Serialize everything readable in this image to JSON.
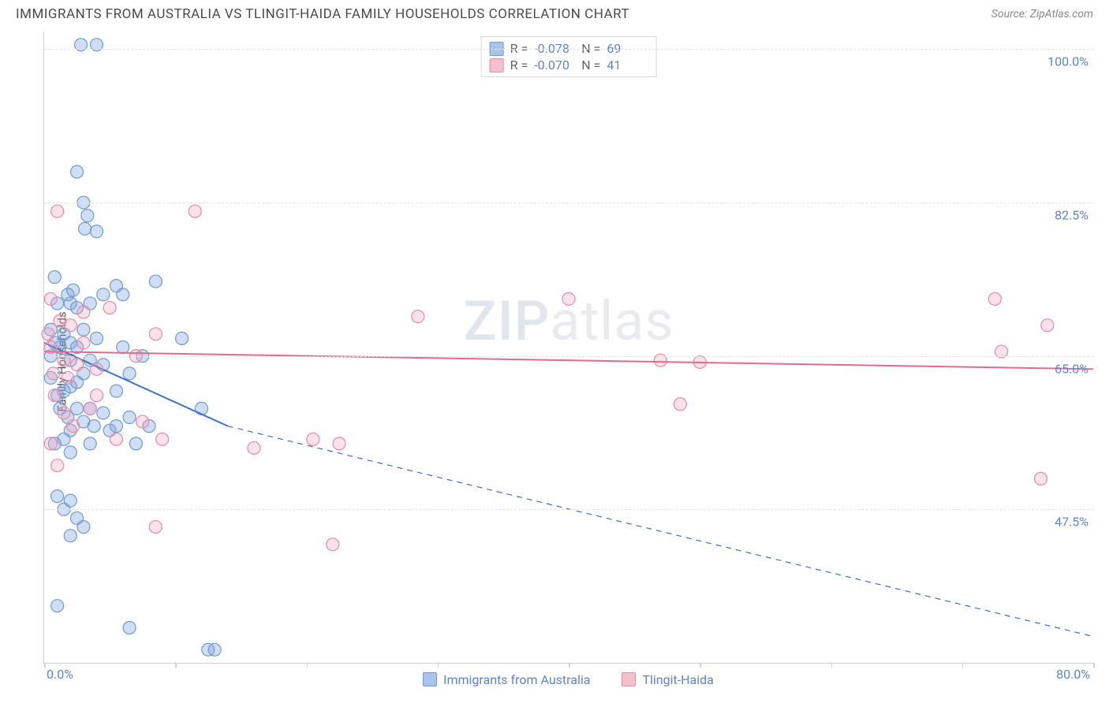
{
  "title": "IMMIGRANTS FROM AUSTRALIA VS TLINGIT-HAIDA FAMILY HOUSEHOLDS CORRELATION CHART",
  "source": "Source: ZipAtlas.com",
  "ylabel": "Family Households",
  "watermark_a": "ZIP",
  "watermark_b": "atlas",
  "chart": {
    "type": "scatter",
    "background_color": "#ffffff",
    "grid_color": "#e2e2e2",
    "axis_color": "#d0d0d0",
    "tick_label_color": "#5b84d6",
    "xlim": [
      0,
      80
    ],
    "ylim": [
      30,
      102
    ],
    "y_ticks": [
      47.5,
      65.0,
      82.5,
      100.0
    ],
    "y_tick_labels": [
      "47.5%",
      "65.0%",
      "82.5%",
      "100.0%"
    ],
    "x_tick_positions": [
      0,
      10,
      20,
      30,
      40,
      50,
      60,
      70,
      80
    ],
    "x_end_labels": [
      "0.0%",
      "80.0%"
    ],
    "marker_radius": 8,
    "marker_stroke_width": 1.2,
    "line_width": 2
  },
  "legend_top": {
    "rows": [
      {
        "swatch_fill": "#a9c4ea",
        "swatch_stroke": "#6f9ad6",
        "r": "-0.078",
        "n": "69"
      },
      {
        "swatch_fill": "#f4c0cd",
        "swatch_stroke": "#e88aa3",
        "r": "-0.070",
        "n": "41"
      }
    ],
    "r_label": "R =",
    "n_label": "N ="
  },
  "legend_bottom": [
    {
      "label": "Immigrants from Australia",
      "fill": "#a9c4ea",
      "stroke": "#6f9ad6"
    },
    {
      "label": "Tlingit-Haida",
      "fill": "#f4c0cd",
      "stroke": "#e88aa3"
    }
  ],
  "series": [
    {
      "name": "Immigrants from Australia",
      "color_fill": "rgba(120,160,220,0.35)",
      "color_stroke": "#6f9ad6",
      "trend": {
        "x1": 0,
        "y1": 66.5,
        "x2": 14,
        "y2": 57,
        "color": "#3d6fc8",
        "dash_after_x": 14,
        "dash_to_x": 80,
        "dash_to_y": 33
      },
      "points": [
        [
          2.8,
          100.5
        ],
        [
          4.0,
          100.5
        ],
        [
          2.5,
          86
        ],
        [
          3.0,
          82.5
        ],
        [
          3.3,
          81
        ],
        [
          3.1,
          79.5
        ],
        [
          4.0,
          79.2
        ],
        [
          0.8,
          74
        ],
        [
          1.0,
          71
        ],
        [
          1.8,
          72
        ],
        [
          2.2,
          72.5
        ],
        [
          2.0,
          71
        ],
        [
          2.5,
          70.5
        ],
        [
          3.5,
          71
        ],
        [
          3.0,
          68
        ],
        [
          4.5,
          72
        ],
        [
          5.5,
          73
        ],
        [
          6.0,
          72
        ],
        [
          8.5,
          73.5
        ],
        [
          0.5,
          68
        ],
        [
          0.8,
          66.5
        ],
        [
          1.2,
          66
        ],
        [
          1.5,
          67.5
        ],
        [
          2.0,
          66.5
        ],
        [
          2.5,
          66
        ],
        [
          2.0,
          64.5
        ],
        [
          3.0,
          63
        ],
        [
          3.5,
          64.5
        ],
        [
          4.0,
          67
        ],
        [
          4.5,
          64
        ],
        [
          6.0,
          66
        ],
        [
          6.5,
          63
        ],
        [
          7.5,
          65
        ],
        [
          10.5,
          67
        ],
        [
          0.5,
          62.5
        ],
        [
          1.0,
          60.5
        ],
        [
          1.5,
          61
        ],
        [
          2.0,
          61.5
        ],
        [
          1.2,
          59
        ],
        [
          1.8,
          58
        ],
        [
          2.5,
          59
        ],
        [
          2.0,
          56.5
        ],
        [
          3.0,
          57.5
        ],
        [
          3.5,
          59
        ],
        [
          3.8,
          57
        ],
        [
          4.5,
          58.5
        ],
        [
          5.0,
          56.5
        ],
        [
          5.5,
          57
        ],
        [
          6.5,
          58
        ],
        [
          8.0,
          57
        ],
        [
          12.0,
          59
        ],
        [
          0.8,
          55
        ],
        [
          1.5,
          55.5
        ],
        [
          2.0,
          54
        ],
        [
          3.5,
          55
        ],
        [
          7.0,
          55
        ],
        [
          1.0,
          49
        ],
        [
          1.5,
          47.5
        ],
        [
          2.0,
          48.5
        ],
        [
          2.5,
          46.5
        ],
        [
          3.0,
          45.5
        ],
        [
          2.0,
          44.5
        ],
        [
          1.0,
          36.5
        ],
        [
          6.5,
          34
        ],
        [
          12.5,
          31.5
        ],
        [
          13.0,
          31.5
        ],
        [
          2.5,
          62
        ],
        [
          5.5,
          61
        ],
        [
          0.5,
          65
        ]
      ]
    },
    {
      "name": "Tlingit-Haida",
      "color_fill": "rgba(240,160,185,0.30)",
      "color_stroke": "#e88aa3",
      "trend": {
        "x1": 0,
        "y1": 65.5,
        "x2": 80,
        "y2": 63.5,
        "color": "#e26b8d"
      },
      "points": [
        [
          1.0,
          81.5
        ],
        [
          11.5,
          81.5
        ],
        [
          0.5,
          71.5
        ],
        [
          1.2,
          69
        ],
        [
          2.0,
          68.5
        ],
        [
          3.0,
          70
        ],
        [
          5.0,
          70.5
        ],
        [
          8.5,
          67.5
        ],
        [
          28.5,
          69.5
        ],
        [
          40.0,
          71.5
        ],
        [
          0.5,
          66
        ],
        [
          1.5,
          64.5
        ],
        [
          2.5,
          64
        ],
        [
          4.0,
          63.5
        ],
        [
          7.0,
          65
        ],
        [
          47.0,
          64.5
        ],
        [
          73.0,
          65.5
        ],
        [
          76.5,
          68.5
        ],
        [
          72.5,
          71.5
        ],
        [
          0.8,
          60.5
        ],
        [
          1.5,
          58.5
        ],
        [
          2.2,
          57
        ],
        [
          3.5,
          59
        ],
        [
          5.5,
          55.5
        ],
        [
          7.5,
          57.5
        ],
        [
          9.0,
          55.5
        ],
        [
          16.0,
          54.5
        ],
        [
          20.5,
          55.5
        ],
        [
          22.5,
          55
        ],
        [
          48.5,
          59.5
        ],
        [
          0.5,
          55
        ],
        [
          1.0,
          52.5
        ],
        [
          8.5,
          45.5
        ],
        [
          22.0,
          43.5
        ],
        [
          76.0,
          51
        ],
        [
          50.0,
          64.3
        ],
        [
          0.7,
          63
        ],
        [
          0.3,
          67.5
        ],
        [
          3.0,
          66.5
        ],
        [
          4.0,
          60.5
        ],
        [
          1.8,
          62.5
        ]
      ]
    }
  ]
}
